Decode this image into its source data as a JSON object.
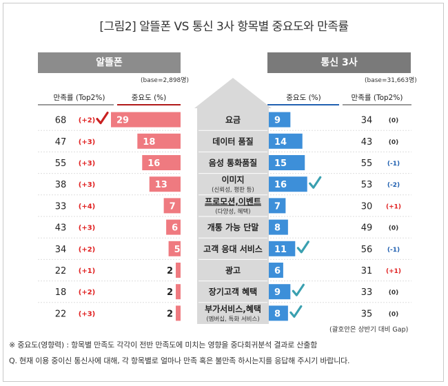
{
  "title": "[그림2] 알뜰폰 VS 통신 3사 항목별 중요도와 만족률",
  "left": {
    "header": "알뜰폰",
    "base": "(base=2,898명)",
    "col_satisfaction": "만족률 (Top2%)",
    "col_importance": "중요도 (%)"
  },
  "right": {
    "header": "통신 3사",
    "base": "(base=31,663명)",
    "col_importance": "중요도 (%)",
    "col_satisfaction": "만족률 (Top2%)"
  },
  "gap_note": "(괄호안은 상반기 대비 Gap)",
  "footnotes": [
    "※ 중요도(영향력) : 항목별 만족도 각각이 전반 만족도에 미치는 영향을 중다회귀분석 결과로 산출함",
    "Q. 현재 이용 중이신 통신사에 대해, 각 항목별로 얼마나 만족 혹은 불만족 하시는지를 응답해 주시기 바랍니다."
  ],
  "colors": {
    "left_bar": "#ef7a80",
    "right_bar": "#3d8fd9",
    "positive_gap": "#e02020",
    "negative_gap": "#1f5fb0",
    "check": "#c92020",
    "check_right": "#3aa0b0",
    "center_panel": "#d9d9d9"
  },
  "chart_data": {
    "type": "bar",
    "categories": [
      {
        "label": "요금",
        "sub": ""
      },
      {
        "label": "데이터 품질",
        "sub": ""
      },
      {
        "label": "음성 통화품질",
        "sub": ""
      },
      {
        "label": "이미지",
        "sub": "(신뢰성, 평판 등)"
      },
      {
        "label": "프로모션,이벤트",
        "sub": "(다양성, 혜택)"
      },
      {
        "label": "개통 가능 단말",
        "sub": ""
      },
      {
        "label": "고객 응대 서비스",
        "sub": ""
      },
      {
        "label": "광고",
        "sub": ""
      },
      {
        "label": "장기고객 혜택",
        "sub": ""
      },
      {
        "label": "부가서비스,혜택",
        "sub": "(멤버십, 특화 서비스)"
      }
    ],
    "series": [
      {
        "name": "알뜰폰",
        "importance": [
          29,
          18,
          16,
          13,
          7,
          6,
          5,
          2,
          2,
          2
        ],
        "satisfaction": [
          68,
          47,
          55,
          38,
          33,
          43,
          34,
          22,
          18,
          22
        ],
        "gap": [
          "(+2)",
          "(+3)",
          "(+3)",
          "(+3)",
          "(+4)",
          "(+3)",
          "(+2)",
          "(+1)",
          "(+2)",
          "(+3)"
        ],
        "check": [
          true,
          false,
          false,
          false,
          false,
          false,
          false,
          false,
          false,
          false
        ]
      },
      {
        "name": "통신 3사",
        "importance": [
          9,
          14,
          15,
          16,
          7,
          8,
          11,
          6,
          9,
          8
        ],
        "satisfaction": [
          34,
          43,
          55,
          53,
          30,
          49,
          56,
          31,
          33,
          35
        ],
        "gap": [
          "(0)",
          "(0)",
          "(-1)",
          "(-2)",
          "(+1)",
          "(0)",
          "(-1)",
          "(+1)",
          "(0)",
          "(0)"
        ],
        "check": [
          false,
          false,
          false,
          true,
          false,
          false,
          true,
          false,
          true,
          true
        ]
      }
    ],
    "xlim": [
      0,
      29
    ]
  }
}
